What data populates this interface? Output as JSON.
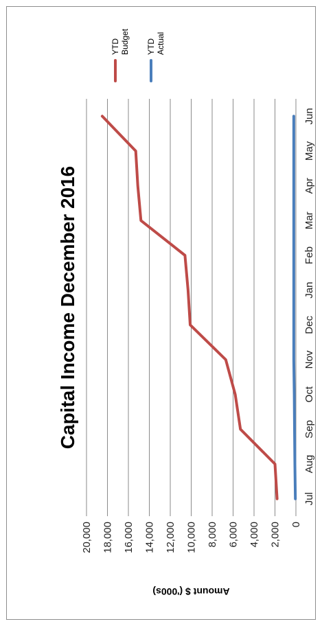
{
  "chart_data": {
    "type": "line",
    "title": "Capital Income December 2016",
    "ylabel": "Amount $ ('000s)",
    "xlabel": "",
    "categories": [
      "Jul",
      "Aug",
      "Sep",
      "Oct",
      "Nov",
      "Dec",
      "Jan",
      "Feb",
      "Mar",
      "Apr",
      "May",
      "Jun"
    ],
    "ylim": [
      0,
      20000
    ],
    "y_ticks": [
      "0",
      "2,000",
      "4,000",
      "6,000",
      "8,000",
      "10,000",
      "12,000",
      "14,000",
      "16,000",
      "18,000",
      "20,000"
    ],
    "grid": true,
    "legend_position": "top-right",
    "series": [
      {
        "name": "YTD Actual",
        "legend_lines": [
          "YTD",
          "Actual"
        ],
        "color": "#4a7ebb",
        "values": [
          50,
          100,
          130,
          160,
          200,
          200,
          200,
          200,
          200,
          200,
          200,
          200
        ]
      },
      {
        "name": "YTD Budget",
        "legend_lines": [
          "YTD",
          "Budget"
        ],
        "color": "#be4b48",
        "values": [
          1800,
          2000,
          5300,
          5800,
          6700,
          10100,
          10300,
          10600,
          14800,
          15100,
          15300,
          18500
        ]
      }
    ]
  }
}
